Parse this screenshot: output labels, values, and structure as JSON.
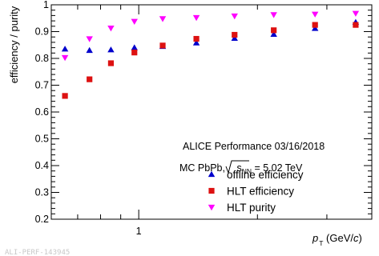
{
  "chart_data": {
    "type": "scatter",
    "title": "",
    "ylabel": "efficiency / purity",
    "xlabel_main": "p",
    "xlabel_sub": "T",
    "xlabel_unit_open": " (GeV/",
    "xlabel_unit_c": "c",
    "xlabel_unit_close": ")",
    "x_scale": "log",
    "xlim": [
      0.6,
      3.9
    ],
    "ylim": [
      0.2,
      1.0
    ],
    "y_ticks": [
      {
        "value": 0.2,
        "label": "0.2"
      },
      {
        "value": 0.3,
        "label": "0.3"
      },
      {
        "value": 0.4,
        "label": "0.4"
      },
      {
        "value": 0.5,
        "label": "0.5"
      },
      {
        "value": 0.6,
        "label": "0.6"
      },
      {
        "value": 0.7,
        "label": "0.7"
      },
      {
        "value": 0.8,
        "label": "0.8"
      },
      {
        "value": 0.9,
        "label": "0.9"
      },
      {
        "value": 1.0,
        "label": "1"
      }
    ],
    "x_ticks": [
      {
        "value": 1,
        "label": "1"
      }
    ],
    "annotation_lines": {
      "line1": "ALICE Performance 03/16/2018",
      "line2_prefix": "MC PbPb, ",
      "line2_sqrt_s": "s",
      "line2_sqrt_sub": "NN",
      "line2_suffix": " = 5.02 TeV"
    },
    "legend_position": "lower-right",
    "series": [
      {
        "name": "offline efficiency",
        "marker": "triangle-up",
        "color": "#0000cc",
        "x": [
          0.65,
          0.75,
          0.85,
          0.975,
          1.15,
          1.4,
          1.75,
          2.2,
          2.8,
          3.55
        ],
        "y": [
          0.835,
          0.83,
          0.832,
          0.84,
          0.845,
          0.858,
          0.875,
          0.89,
          0.912,
          0.935
        ]
      },
      {
        "name": "HLT efficiency",
        "marker": "square",
        "color": "#dd1111",
        "x": [
          0.65,
          0.75,
          0.85,
          0.975,
          1.15,
          1.4,
          1.75,
          2.2,
          2.8,
          3.55
        ],
        "y": [
          0.66,
          0.722,
          0.782,
          0.822,
          0.848,
          0.873,
          0.888,
          0.905,
          0.925,
          0.925
        ]
      },
      {
        "name": "HLT purity",
        "marker": "triangle-down",
        "color": "#ff00ff",
        "x": [
          0.65,
          0.75,
          0.85,
          0.975,
          1.15,
          1.4,
          1.75,
          2.2,
          2.8,
          3.55
        ],
        "y": [
          0.803,
          0.873,
          0.913,
          0.938,
          0.948,
          0.952,
          0.958,
          0.963,
          0.965,
          0.968
        ]
      }
    ],
    "watermark": "ALI-PERF-143945"
  }
}
